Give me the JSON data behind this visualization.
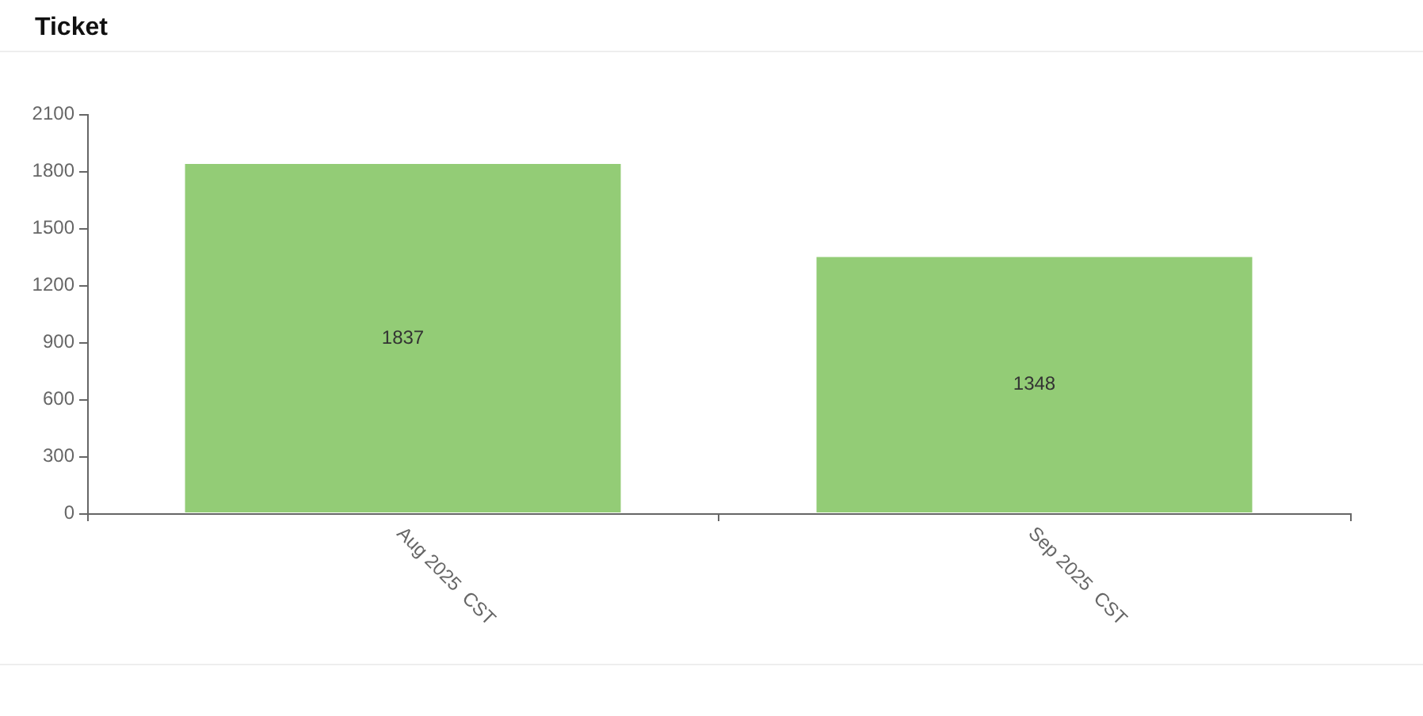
{
  "chart_data": {
    "type": "bar",
    "title": "Ticket",
    "categories": [
      "Aug 2025  CST",
      "Sep 2025  CST"
    ],
    "values": [
      1837,
      1348
    ],
    "color": "#93cc76",
    "ylim": [
      0,
      2100
    ],
    "yticks": [
      0,
      300,
      600,
      900,
      1200,
      1500,
      1800,
      2100
    ],
    "data_labels": true
  }
}
